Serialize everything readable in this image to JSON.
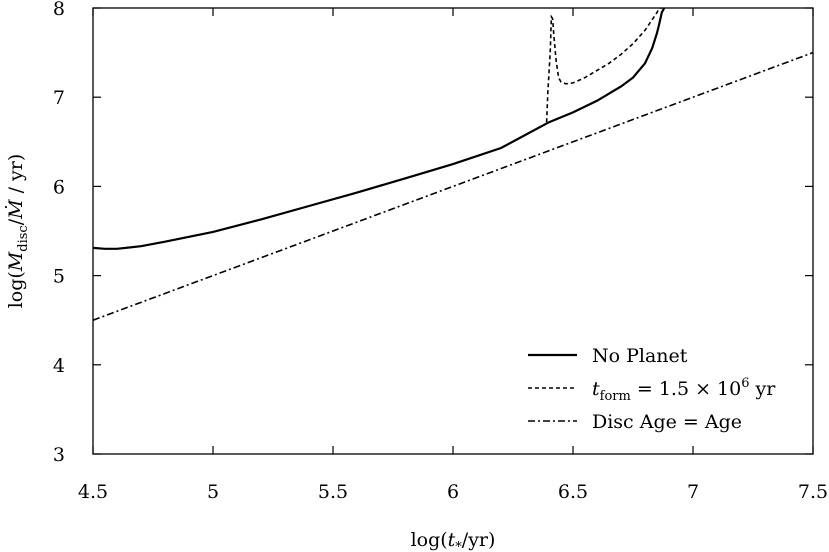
{
  "chart_data": {
    "type": "line",
    "title": "",
    "xlabel": "log(t_*/yr)",
    "ylabel": "log(M_disc/Ṁ / yr)",
    "xlim": [
      4.5,
      7.5
    ],
    "ylim": [
      3,
      8
    ],
    "xticks": [
      "4.5",
      "5",
      "5.5",
      "6",
      "6.5",
      "7",
      "7.5"
    ],
    "yticks": [
      "3",
      "4",
      "5",
      "6",
      "7",
      "8"
    ],
    "grid": false,
    "legend_position": "bottom-right",
    "series": [
      {
        "name": "No Planet",
        "style": "solid",
        "color": "#000000",
        "x": [
          4.5,
          4.55,
          4.6,
          4.7,
          4.8,
          5.0,
          5.2,
          5.4,
          5.6,
          5.8,
          6.0,
          6.2,
          6.4,
          6.5,
          6.6,
          6.7,
          6.75,
          6.8,
          6.83,
          6.85,
          6.86,
          6.87,
          6.88
        ],
        "y": [
          5.31,
          5.3,
          5.3,
          5.33,
          5.38,
          5.49,
          5.63,
          5.78,
          5.93,
          6.09,
          6.25,
          6.43,
          6.72,
          6.83,
          6.96,
          7.12,
          7.22,
          7.38,
          7.55,
          7.72,
          7.83,
          7.95,
          8.0
        ]
      },
      {
        "name": "t_form = 1.5 × 10^6 yr",
        "style": "dashed",
        "color": "#000000",
        "x": [
          6.39,
          6.395,
          6.405,
          6.41,
          6.415,
          6.42,
          6.43,
          6.44,
          6.45,
          6.47,
          6.5,
          6.55,
          6.6,
          6.65,
          6.7,
          6.75,
          6.8,
          6.83,
          6.85,
          6.86,
          6.87
        ],
        "y": [
          6.72,
          7.05,
          7.5,
          7.9,
          7.88,
          7.7,
          7.4,
          7.22,
          7.17,
          7.15,
          7.16,
          7.22,
          7.3,
          7.38,
          7.48,
          7.6,
          7.75,
          7.87,
          7.95,
          8.0,
          8.0
        ]
      },
      {
        "name": "Disc Age = Age",
        "style": "dash-dot",
        "color": "#000000",
        "x": [
          4.5,
          7.5
        ],
        "y": [
          4.5,
          7.5
        ]
      }
    ]
  }
}
